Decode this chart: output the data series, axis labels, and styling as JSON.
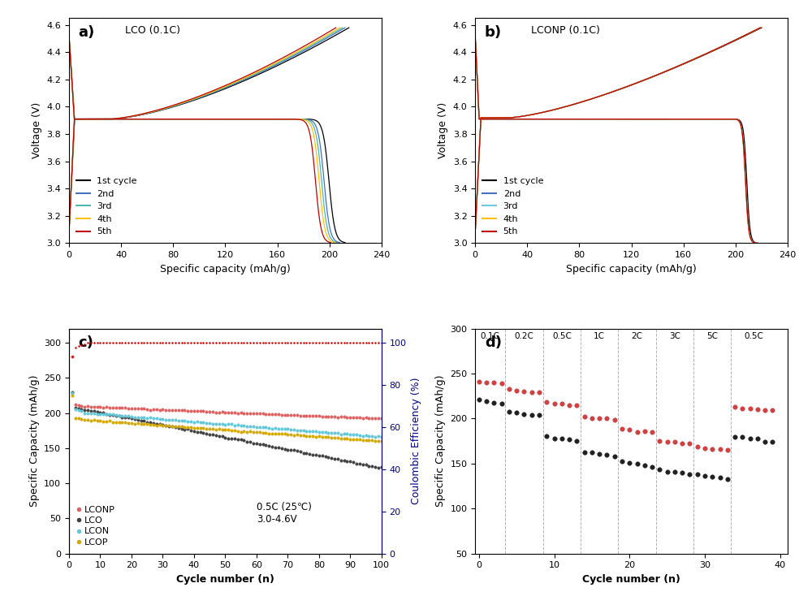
{
  "panel_a": {
    "title": "LCO (0.1C)",
    "xlabel": "Specific capacity (mAh/g)",
    "ylabel": "Voltage (V)",
    "xlim": [
      0,
      240
    ],
    "ylim": [
      3.0,
      4.65
    ],
    "cycle_colors": [
      "#000000",
      "#4472c4",
      "#4db8b0",
      "#ffc000",
      "#c00000"
    ],
    "cycle_labels": [
      "1st cycle",
      "2nd",
      "3rd",
      "4th",
      "5th"
    ],
    "charge_caps": [
      215,
      212,
      210,
      208,
      205
    ],
    "discharge_caps": [
      212,
      208,
      206,
      204,
      201
    ]
  },
  "panel_b": {
    "title": "LCONP (0.1C)",
    "xlabel": "Specific capacity (mAh/g)",
    "ylabel": "Voltage (V)",
    "xlim": [
      0,
      240
    ],
    "ylim": [
      3.0,
      4.65
    ],
    "cycle_colors": [
      "#000000",
      "#4472c4",
      "#70c8e0",
      "#ffc000",
      "#c00000"
    ],
    "cycle_labels": [
      "1st cycle",
      "2nd",
      "3rd",
      "4th",
      "5th"
    ],
    "charge_caps": [
      220,
      219,
      219,
      219,
      219
    ],
    "discharge_caps": [
      217,
      216,
      216,
      216,
      216
    ]
  },
  "panel_c": {
    "xlabel": "Cycle number (n)",
    "ylabel_left": "Specific Capacity (mAh/g)",
    "ylabel_right": "Coulombic Efficiency (%)",
    "xlim": [
      0,
      100
    ],
    "ylim_left": [
      0,
      320
    ],
    "ylim_right": [
      0,
      106.67
    ],
    "annotation": "0.5C (25℃)\n3.0-4.6V",
    "lconp_color": "#e06060",
    "lco_color": "#404040",
    "lcon_color": "#60c8d8",
    "lcop_color": "#d4a800",
    "ce_color": "#cc0000"
  },
  "panel_d": {
    "xlabel": "Cycle number (n)",
    "ylabel": "Specific Capacity (mAh/g)",
    "xlim": [
      -0.5,
      41
    ],
    "ylim": [
      50,
      300
    ],
    "rate_labels": [
      "0.1C",
      "0.2C",
      "0.5C",
      "1C",
      "2C",
      "3C",
      "5C",
      "0.5C"
    ],
    "vline_positions": [
      4.5,
      9.5,
      14.5,
      19.5,
      24.5,
      29.5,
      34.5
    ],
    "lconp_color": "#d04040",
    "lco_color": "#202020"
  }
}
